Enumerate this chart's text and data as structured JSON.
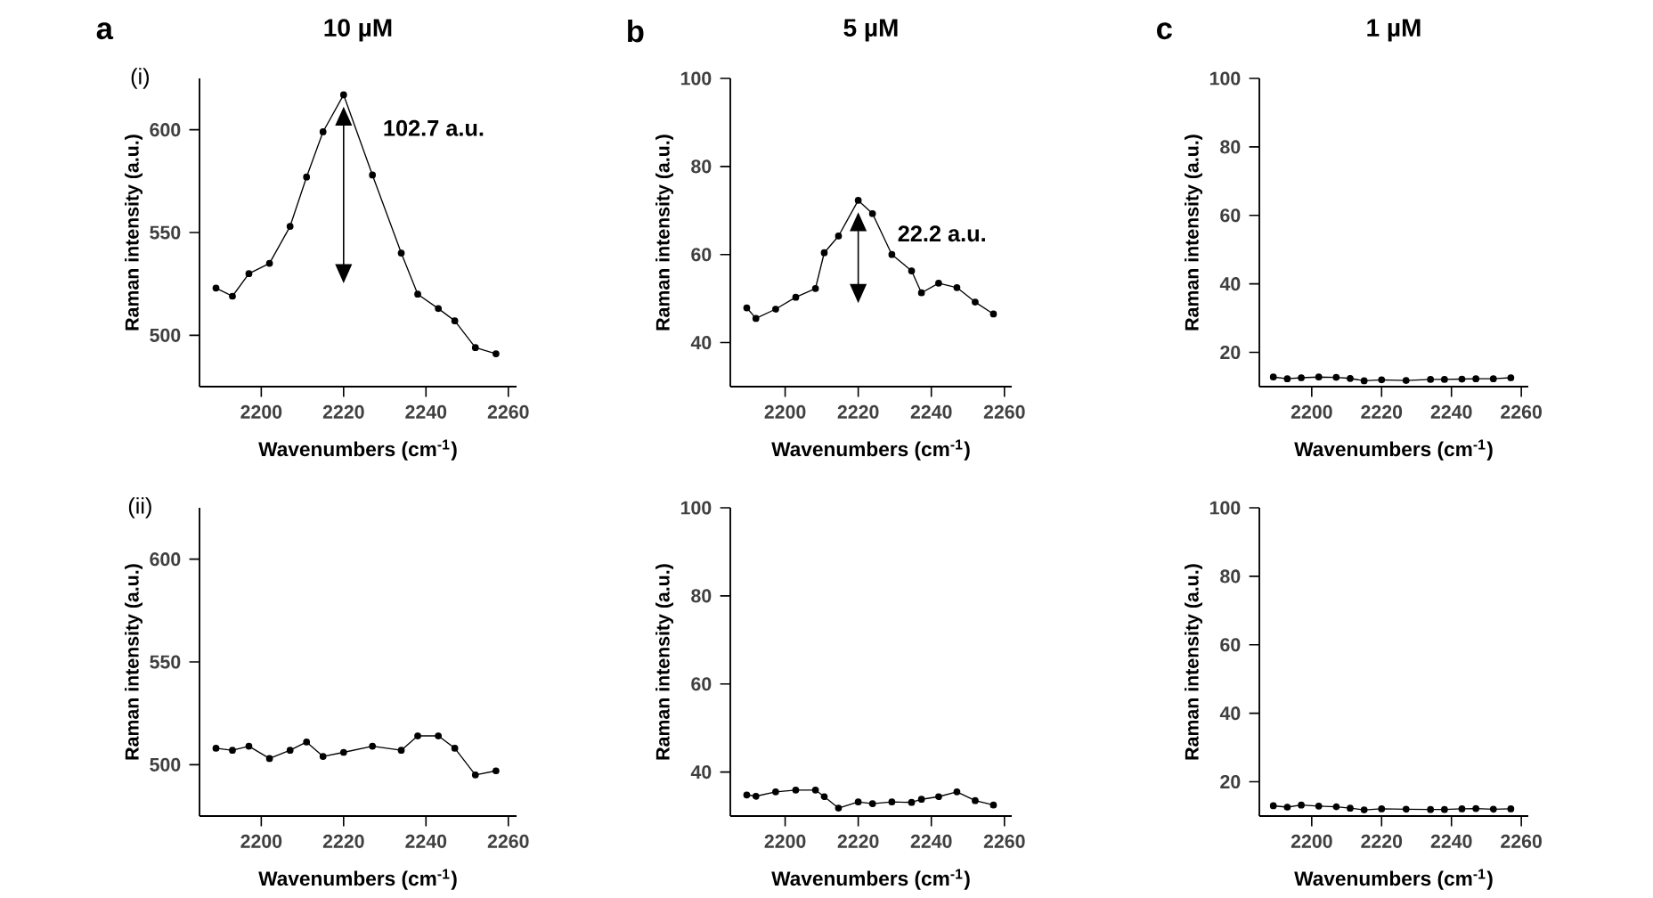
{
  "chart_data": [
    {
      "type": "line",
      "title": "10 µM",
      "xlabel": "Wavenumbers (cm$^{-1}$)",
      "ylabel": "Raman intensity (a.u.)",
      "x": [
        2189,
        2193,
        2197,
        2202,
        2207,
        2211,
        2215,
        2220,
        2227,
        2234,
        2238,
        2243,
        2247,
        2252,
        2257
      ],
      "series": [
        {
          "color": "#000000",
          "values": [
            523,
            519,
            530,
            535,
            553,
            577,
            599,
            617,
            578,
            540,
            520,
            513,
            507,
            494,
            491
          ]
        }
      ],
      "xlim": [
        2185,
        2262
      ],
      "ylim": [
        475,
        625
      ],
      "xticks": [
        2200,
        2220,
        2240,
        2260
      ],
      "yticks": [
        500,
        550,
        600
      ],
      "marker": "circle",
      "annotations": [
        "a",
        "(i)",
        {
          "text": "102.7 a.u.",
          "x": 2220,
          "y": 617
        }
      ]
    },
    {
      "type": "line",
      "title": "5 µM",
      "xlabel": "Wavenumbers (cm$^{-1}$)",
      "ylabel": "Raman intensity (a.u.)",
      "x": [
        2189.5,
        2192,
        2197.4,
        2202.9,
        2208.3,
        2210.7,
        2214.6,
        2220,
        2223.9,
        2229.2,
        2234.6,
        2237.3,
        2242,
        2247,
        2252,
        2257
      ],
      "series": [
        {
          "color": "#000000",
          "values": [
            47.9,
            45.5,
            47.6,
            50.3,
            52.3,
            60.4,
            64.2,
            72.3,
            69.3,
            60.0,
            56.3,
            51.3,
            53.5,
            52.5,
            49.2,
            46.5
          ]
        }
      ],
      "xlim": [
        2185,
        2262
      ],
      "ylim": [
        30,
        100
      ],
      "xticks": [
        2200,
        2220,
        2240,
        2260
      ],
      "yticks": [
        40,
        60,
        80,
        100
      ],
      "marker": "circle",
      "annotations": [
        "b",
        {
          "text": "22.2 a.u.",
          "x": 2220,
          "y": 72.3
        }
      ]
    },
    {
      "type": "line",
      "title": "1 µM",
      "xlabel": "Wavenumbers (cm$^{-1}$)",
      "ylabel": "Raman intensity (a.u.)",
      "x": [
        2189,
        2193,
        2197,
        2202,
        2207,
        2211,
        2215,
        2220,
        2227,
        2234,
        2238,
        2243,
        2247,
        2252,
        2257
      ],
      "series": [
        {
          "color": "#000000",
          "values": [
            12.8,
            12.3,
            12.6,
            12.8,
            12.7,
            12.4,
            11.7,
            12.0,
            11.8,
            12.1,
            12.1,
            12.2,
            12.3,
            12.3,
            12.6
          ]
        }
      ],
      "xlim": [
        2185,
        2262
      ],
      "ylim": [
        10,
        100
      ],
      "xticks": [
        2200,
        2220,
        2240,
        2260
      ],
      "yticks": [
        20,
        40,
        60,
        80,
        100
      ],
      "marker": "circle",
      "annotations": [
        "c"
      ]
    },
    {
      "type": "line",
      "xlabel": "Wavenumbers (cm$^{-1}$)",
      "ylabel": "Raman intensity (a.u.)",
      "x": [
        2189,
        2193,
        2197,
        2202,
        2207,
        2211,
        2215,
        2220,
        2227,
        2234,
        2238,
        2243,
        2247,
        2252,
        2257
      ],
      "series": [
        {
          "color": "#000000",
          "values": [
            508,
            507,
            509,
            503,
            507,
            511,
            504,
            506,
            509,
            507,
            514,
            514,
            508,
            495,
            497
          ]
        }
      ],
      "xlim": [
        2185,
        2262
      ],
      "ylim": [
        475,
        625
      ],
      "xticks": [
        2200,
        2220,
        2240,
        2260
      ],
      "yticks": [
        500,
        550,
        600
      ],
      "marker": "circle",
      "annotations": [
        "(ii)"
      ]
    },
    {
      "type": "line",
      "xlabel": "Wavenumbers (cm$^{-1}$)",
      "ylabel": "Raman intensity (a.u.)",
      "x": [
        2189.5,
        2192,
        2197.4,
        2202.9,
        2208.3,
        2210.7,
        2214.6,
        2220,
        2223.9,
        2229.2,
        2234.6,
        2237.3,
        2242,
        2247,
        2252,
        2257
      ],
      "series": [
        {
          "color": "#000000",
          "values": [
            34.8,
            34.5,
            35.5,
            35.9,
            35.9,
            34.4,
            31.8,
            33.2,
            32.8,
            33.2,
            33.1,
            33.8,
            34.4,
            35.5,
            33.5,
            32.5
          ]
        }
      ],
      "xlim": [
        2185,
        2262
      ],
      "ylim": [
        30,
        100
      ],
      "xticks": [
        2200,
        2220,
        2240,
        2260
      ],
      "yticks": [
        40,
        60,
        80,
        100
      ],
      "marker": "circle"
    },
    {
      "type": "line",
      "xlabel": "Wavenumbers (cm$^{-1}$)",
      "ylabel": "Raman intensity (a.u.)",
      "x": [
        2189,
        2193,
        2197,
        2202,
        2207,
        2211,
        2215,
        2220,
        2227,
        2234,
        2238,
        2243,
        2247,
        2252,
        2257
      ],
      "series": [
        {
          "color": "#000000",
          "values": [
            13.0,
            12.6,
            13.2,
            12.9,
            12.7,
            12.3,
            11.8,
            12.1,
            12.0,
            11.9,
            11.9,
            12.1,
            12.2,
            12.0,
            12.1
          ]
        }
      ],
      "xlim": [
        2185,
        2262
      ],
      "ylim": [
        10,
        100
      ],
      "xticks": [
        2200,
        2220,
        2240,
        2260
      ],
      "yticks": [
        20,
        40,
        60,
        80,
        100
      ],
      "marker": "circle"
    }
  ]
}
